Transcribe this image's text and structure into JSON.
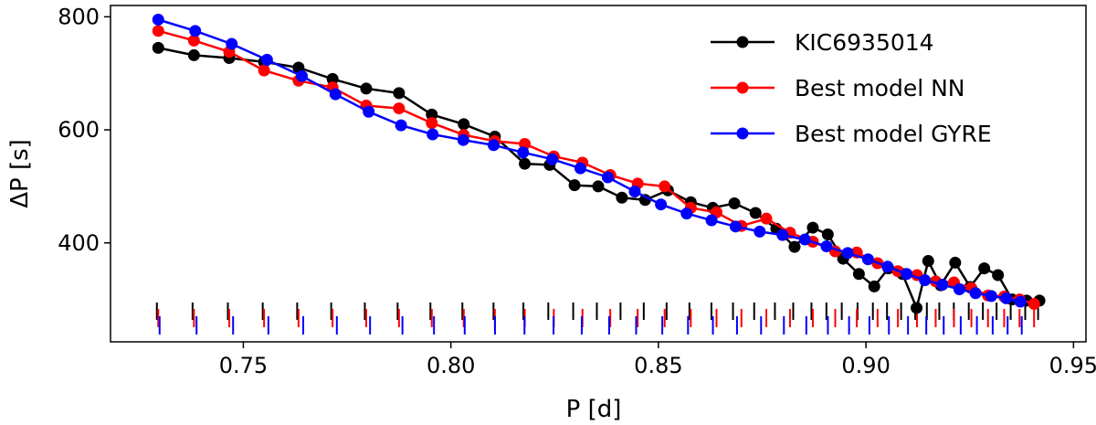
{
  "chart_data": {
    "type": "line",
    "title": "",
    "xlabel": "P [d]",
    "ylabel": "ΔP [s]",
    "xlim": [
      0.718,
      0.953
    ],
    "ylim": [
      225,
      820
    ],
    "x_ticks": [
      0.75,
      0.8,
      0.85,
      0.9,
      0.95
    ],
    "x_tick_labels": [
      "0.75",
      "0.80",
      "0.85",
      "0.90",
      "0.95"
    ],
    "y_ticks": [
      400,
      600,
      800
    ],
    "y_tick_labels": [
      "400",
      "600",
      "800"
    ],
    "grid": false,
    "legend_position": "top-right",
    "series": [
      {
        "name": "KIC6935014",
        "color": "#000000",
        "x": [
          0.7295,
          0.7381,
          0.7466,
          0.755,
          0.7633,
          0.7715,
          0.7796,
          0.7875,
          0.7954,
          0.8031,
          0.8106,
          0.8178,
          0.8238,
          0.8298,
          0.8355,
          0.8412,
          0.8468,
          0.8523,
          0.8578,
          0.8631,
          0.8683,
          0.8734,
          0.8784,
          0.8828,
          0.8872,
          0.8908,
          0.8945,
          0.8983,
          0.902,
          0.9054,
          0.9088,
          0.9122,
          0.915,
          0.918,
          0.9215,
          0.9251,
          0.9285,
          0.9318,
          0.9352,
          0.9387,
          0.9418
        ],
        "y": [
          745,
          732,
          727,
          720,
          710,
          690,
          673,
          665,
          627,
          610,
          588,
          540,
          538,
          502,
          500,
          480,
          476,
          493,
          472,
          462,
          470,
          453,
          425,
          393,
          427,
          415,
          372,
          345,
          323,
          355,
          345,
          285,
          368,
          325,
          365,
          322,
          355,
          343,
          300,
          298,
          298
        ]
      },
      {
        "name": "Best model NN",
        "color": "#ff0000",
        "x": [
          0.7295,
          0.7381,
          0.7466,
          0.755,
          0.7633,
          0.7715,
          0.7796,
          0.7875,
          0.7954,
          0.8031,
          0.8106,
          0.8178,
          0.8248,
          0.8317,
          0.8384,
          0.845,
          0.8515,
          0.8578,
          0.864,
          0.87,
          0.876,
          0.8817,
          0.8872,
          0.8926,
          0.8978,
          0.9028,
          0.9077,
          0.9123,
          0.9168,
          0.9212,
          0.9254,
          0.9294,
          0.9333,
          0.937,
          0.9405
        ],
        "y": [
          775,
          758,
          738,
          705,
          687,
          675,
          643,
          638,
          612,
          591,
          580,
          575,
          553,
          542,
          520,
          505,
          500,
          462,
          454,
          430,
          443,
          418,
          402,
          385,
          383,
          364,
          350,
          343,
          332,
          330,
          320,
          307,
          305,
          300,
          292
        ]
      },
      {
        "name": "Best model GYRE",
        "color": "#0000ff",
        "x": [
          0.7295,
          0.7384,
          0.7472,
          0.7557,
          0.7641,
          0.7722,
          0.7802,
          0.788,
          0.7956,
          0.803,
          0.8103,
          0.8174,
          0.8244,
          0.8312,
          0.8378,
          0.8443,
          0.8506,
          0.8568,
          0.8628,
          0.8686,
          0.8744,
          0.8799,
          0.8853,
          0.8905,
          0.8956,
          0.9005,
          0.9052,
          0.9098,
          0.9142,
          0.9184,
          0.9225,
          0.9264,
          0.9302,
          0.9338,
          0.9372
        ],
        "y": [
          795,
          775,
          752,
          724,
          695,
          663,
          632,
          608,
          592,
          582,
          573,
          560,
          548,
          532,
          516,
          491,
          468,
          452,
          440,
          429,
          420,
          414,
          406,
          394,
          382,
          371,
          358,
          345,
          334,
          326,
          318,
          311,
          306,
          302,
          296
        ]
      }
    ],
    "period_markers": [
      {
        "name": "KIC6935014",
        "color": "#000000",
        "x": [
          0.7295,
          0.7381,
          0.7466,
          0.755,
          0.7633,
          0.7715,
          0.7796,
          0.7875,
          0.7954,
          0.8031,
          0.8106,
          0.8178,
          0.8238,
          0.8298,
          0.8355,
          0.8412,
          0.8468,
          0.8523,
          0.8578,
          0.8631,
          0.8683,
          0.8734,
          0.8784,
          0.8828,
          0.8872,
          0.8908,
          0.8945,
          0.8983,
          0.902,
          0.9054,
          0.9088,
          0.9122,
          0.915,
          0.918,
          0.9215,
          0.9251,
          0.9285,
          0.9318,
          0.9352,
          0.9387,
          0.9418
        ]
      },
      {
        "name": "Best model NN",
        "color": "#ff0000",
        "x": [
          0.7295,
          0.7381,
          0.7466,
          0.755,
          0.7633,
          0.7715,
          0.7796,
          0.7875,
          0.7954,
          0.8031,
          0.8106,
          0.8178,
          0.8248,
          0.8317,
          0.8384,
          0.845,
          0.8515,
          0.8578,
          0.864,
          0.87,
          0.876,
          0.8817,
          0.8872,
          0.8926,
          0.8978,
          0.9028,
          0.9077,
          0.9123,
          0.9168,
          0.9212,
          0.9254,
          0.9294,
          0.9333,
          0.937,
          0.9405
        ]
      },
      {
        "name": "Best model GYRE",
        "color": "#0000ff",
        "x": [
          0.7295,
          0.7384,
          0.7472,
          0.7557,
          0.7641,
          0.7722,
          0.7802,
          0.788,
          0.7956,
          0.803,
          0.8103,
          0.8174,
          0.8244,
          0.8312,
          0.8378,
          0.8443,
          0.8506,
          0.8568,
          0.8628,
          0.8686,
          0.8744,
          0.8799,
          0.8853,
          0.8905,
          0.8956,
          0.9005,
          0.9052,
          0.9098,
          0.9142,
          0.9184,
          0.9225,
          0.9264,
          0.9302,
          0.9338,
          0.9372
        ]
      }
    ]
  }
}
